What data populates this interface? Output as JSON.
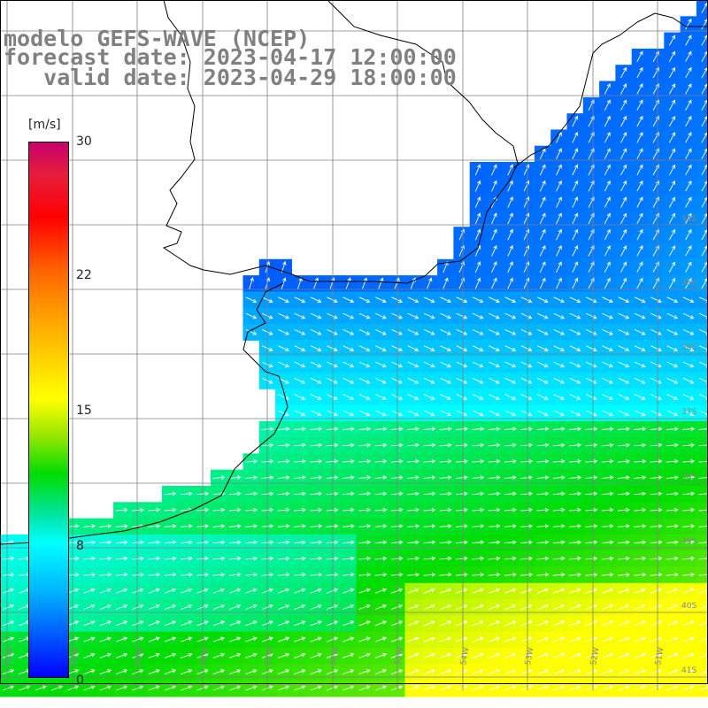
{
  "title": {
    "line1": "modelo GEFS-WAVE (NCEP)",
    "line2": "forecast date: 2023-04-17 12:00:00",
    "line3": "   valid date: 2023-04-29 18:00:00"
  },
  "colorbar": {
    "unit": "[m/s]",
    "ticks": [
      "30",
      "22",
      "15",
      "8",
      "0"
    ],
    "range": [
      0,
      30
    ]
  },
  "map": {
    "lat_labels": [
      "34S",
      "35S",
      "36S",
      "37S",
      "38S",
      "39S",
      "40S",
      "41S"
    ],
    "lon_labels": [
      "61W",
      "60W",
      "59W",
      "58W",
      "57W",
      "56W",
      "55W",
      "54W",
      "53W",
      "52W",
      "51W"
    ],
    "colors": {
      "land": "#ffffff",
      "coast": "#000000",
      "grid": "#808080",
      "arrow": "#ffffff",
      "ocean_low": "#0000ff",
      "ocean_mid": "#00ffff",
      "ocean_high": "#00dc00",
      "ocean_peak": "#ffff00"
    }
  }
}
